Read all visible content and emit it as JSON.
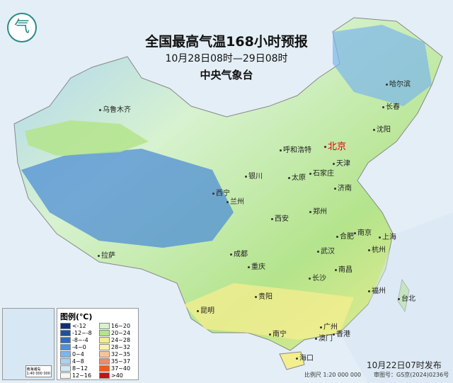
{
  "header": {
    "title": "全国最高气温168小时预报",
    "period": "10月28日08时—29日08时",
    "agency": "中央气象台",
    "logo_text": "气"
  },
  "cities": [
    {
      "name": "乌鲁木齐"
    },
    {
      "name": "哈尔滨"
    },
    {
      "name": "长春"
    },
    {
      "name": "沈阳"
    },
    {
      "name": "呼和浩特"
    },
    {
      "name": "北京",
      "capital": true
    },
    {
      "name": "天津"
    },
    {
      "name": "石家庄"
    },
    {
      "name": "太原"
    },
    {
      "name": "银川"
    },
    {
      "name": "济南"
    },
    {
      "name": "西宁"
    },
    {
      "name": "兰州"
    },
    {
      "name": "郑州"
    },
    {
      "name": "西安"
    },
    {
      "name": "合肥"
    },
    {
      "name": "南京"
    },
    {
      "name": "上海"
    },
    {
      "name": "杭州"
    },
    {
      "name": "成都"
    },
    {
      "name": "武汉"
    },
    {
      "name": "重庆"
    },
    {
      "name": "南昌"
    },
    {
      "name": "长沙"
    },
    {
      "name": "拉萨"
    },
    {
      "name": "贵阳"
    },
    {
      "name": "福州"
    },
    {
      "name": "台北"
    },
    {
      "name": "昆明"
    },
    {
      "name": "广州"
    },
    {
      "name": "南宁"
    },
    {
      "name": "澳门"
    },
    {
      "name": "香港"
    },
    {
      "name": "海口"
    }
  ],
  "legend": {
    "title": "图例(℃)",
    "items": [
      {
        "label": "<-12",
        "color": "#0b2f7a"
      },
      {
        "label": "-12~-8",
        "color": "#1f4f9e"
      },
      {
        "label": "-8~-4",
        "color": "#2d6cc0"
      },
      {
        "label": "-4~0",
        "color": "#4f8fd6"
      },
      {
        "label": "0~4",
        "color": "#7cb6ea"
      },
      {
        "label": "4~8",
        "color": "#a9d2f3"
      },
      {
        "label": "8~12",
        "color": "#cfeaf6"
      },
      {
        "label": "12~16",
        "color": "#f4f7f4"
      },
      {
        "label": "16~20",
        "color": "#d7f2d0"
      },
      {
        "label": "20~24",
        "color": "#b4e48c"
      },
      {
        "label": "24~28",
        "color": "#f3ee8e"
      },
      {
        "label": "28~32",
        "color": "#f8f1b4"
      },
      {
        "label": "32~35",
        "color": "#f7c49a"
      },
      {
        "label": "35~37",
        "color": "#ef8a6a"
      },
      {
        "label": "37~40",
        "color": "#f0591c"
      },
      {
        "label": ">40",
        "color": "#c8101a"
      }
    ]
  },
  "inset": {
    "label": "南海诸岛",
    "scale": "1:40 000 000"
  },
  "footer": {
    "issued": "10月22日07时发布",
    "scale": "比例尺 1:20 000 000",
    "review_no": "审图号：GS京(2024)0236号"
  }
}
